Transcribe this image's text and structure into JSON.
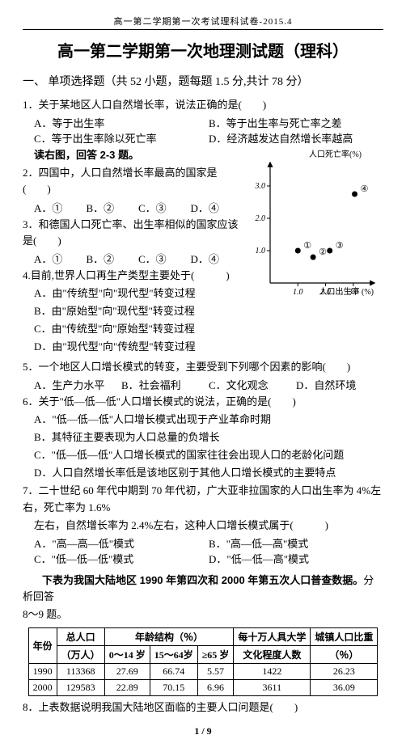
{
  "header": "高一第二学期第一次考试理科试卷-2015.4",
  "title": "高一第二学期第一次地理测试题（理科）",
  "section_line": "一、 单项选择题（共 52 小题，题每题 1.5 分,共计 78 分）",
  "q1": {
    "stem": "1．关于某地区人口自然增长率，说法正确的是(　　)",
    "A": "A．等于出生率",
    "B": "B．等于出生率与死亡率之差",
    "C": "C．等于出生率除以死亡率",
    "D": "D．经济越发达自然增长率越高"
  },
  "read_hint": "读右图，回答 2-3 题。",
  "q2": {
    "stem": "2．四国中，人口自然增长率最高的国家是(　　)",
    "A": "A．①",
    "B": "B．②",
    "C": "C．③",
    "D": "D．④"
  },
  "q3": {
    "stem": "3．和德国人口死亡率、出生率相似的国家应该是(　　)",
    "A": "A．①",
    "B": "B．②",
    "C": "C．③",
    "D": "D．④"
  },
  "q4": {
    "stem": "4.目前,世界人口再生产类型主要处于(　　　)",
    "A": "A．由\"传统型\"向\"现代型\"转变过程",
    "B": "B．由\"原始型\"向\"现代型\"转变过程",
    "C": "C．由\"传统型\"向\"原始型\"转变过程",
    "D": "D．由\"现代型\"向\"传统型\"转变过程"
  },
  "q5": {
    "stem": "5．一个地区人口增长模式的转变，主要受到下列哪个因素的影响(　　)",
    "A": "A．生产力水平",
    "B": "B．社会福利",
    "C": "C．文化观念",
    "D": "D．自然环境"
  },
  "q6": {
    "stem": "6．关于\"低—低—低\"人口增长模式的说法，正确的是(　　)",
    "A": "A．\"低—低—低\"人口增长模式出现于产业革命时期",
    "B": "B．其特征主要表现为人口总量的负增长",
    "C": "C．\"低—低—低\"人口增长模式的国家往往会出现人口的老龄化问题",
    "D": "D．人口自然增长率低是该地区别于其他人口增长模式的主要特点"
  },
  "q7": {
    "stem1": "7．二十世纪 60 年代中期到 70 年代初，广大亚非拉国家的人口出生率为 4%左右，死亡率为 1.6%",
    "stem2": "左右，自然增长率为 2.4%左右，这种人口增长模式属于(　　　)",
    "A": "A．\"高—高—低\"模式",
    "B": "B．\"高—低—高\"模式",
    "C": "C．\"低—低—低\"模式",
    "D": "D．\"低—低—高\"模式"
  },
  "table_intro_1": "下表为我国大陆地区 1990 年第四次和 2000 年第五次人口普查数据。",
  "table_intro_2": "分析回答",
  "table_intro_3": "8～9 题。",
  "census": {
    "headers": {
      "year": "年份",
      "pop": "总人口",
      "pop_sub": "（万人）",
      "age_struct": "年龄结构（％）",
      "a0_14": "0～14 岁",
      "a15_64": "15～64岁",
      "a65": "≥65 岁",
      "edu": "每十万人具大学",
      "edu_sub": "文化程度人数",
      "urban": "城镇人口比重",
      "urban_sub": "（％）"
    },
    "rows": [
      {
        "year": "1990",
        "pop": "113368",
        "a0_14": "27.69",
        "a15_64": "66.74",
        "a65": "5.57",
        "edu": "1422",
        "urban": "26.23"
      },
      {
        "year": "2000",
        "pop": "129583",
        "a0_14": "22.89",
        "a15_64": "70.15",
        "a65": "6.96",
        "edu": "3611",
        "urban": "36.09"
      }
    ]
  },
  "q8": "8．上表数据说明我国大陆地区面临的主要人口问题是(　　)",
  "page_num": "1 / 9",
  "chart": {
    "ylabel": "人口死亡率(%)",
    "xlabel": "人口出生率 (%)",
    "yticks": [
      1.0,
      2.0,
      3.0
    ],
    "xticks": [
      1.0,
      2.0,
      3.0
    ],
    "points": [
      {
        "id": "①",
        "x": 1.0,
        "y": 1.0
      },
      {
        "id": "②",
        "x": 1.55,
        "y": 0.8
      },
      {
        "id": "③",
        "x": 2.15,
        "y": 1.0
      },
      {
        "id": "④",
        "x": 3.05,
        "y": 2.75
      }
    ],
    "point_fill": "#000000",
    "axis_color": "#000000",
    "bg": "#ffffff",
    "font_size_labels": 10
  }
}
